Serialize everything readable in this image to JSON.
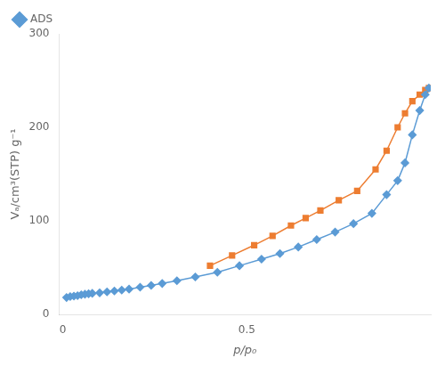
{
  "chart_data": {
    "type": "line",
    "xlabel": "p/p₀",
    "ylabel": "Vₐ/cm³(STP) g⁻¹",
    "series": [
      {
        "name": "ADS",
        "color": "#5b9bd5",
        "marker": "diamond",
        "x": [
          0.01,
          0.02,
          0.03,
          0.04,
          0.05,
          0.06,
          0.07,
          0.08,
          0.1,
          0.12,
          0.14,
          0.16,
          0.18,
          0.21,
          0.24,
          0.27,
          0.31,
          0.36,
          0.42,
          0.48,
          0.54,
          0.59,
          0.64,
          0.69,
          0.74,
          0.79,
          0.84,
          0.88,
          0.91,
          0.93,
          0.95,
          0.97,
          0.985,
          0.995
        ],
        "values": [
          18,
          19,
          19.5,
          20,
          21,
          21.5,
          22,
          22.5,
          23,
          24,
          25,
          26,
          27,
          29,
          31,
          33,
          36,
          40,
          45,
          52,
          59,
          65,
          72,
          80,
          88,
          97,
          108,
          128,
          143,
          162,
          192,
          218,
          235,
          242
        ]
      },
      {
        "color": "#ed7d31",
        "marker": "square",
        "x": [
          0.4,
          0.46,
          0.52,
          0.57,
          0.62,
          0.66,
          0.7,
          0.75,
          0.8,
          0.85,
          0.88,
          0.91,
          0.93,
          0.95,
          0.97,
          0.985,
          0.995
        ],
        "values": [
          52,
          63,
          74,
          84,
          95,
          103,
          111,
          122,
          132,
          155,
          175,
          200,
          215,
          228,
          235,
          240,
          242
        ]
      }
    ],
    "xlim": [
      -0.01,
      1.0
    ],
    "ylim": [
      0,
      300
    ],
    "xticks": [
      0,
      0.5
    ],
    "yticks": [
      0,
      100,
      200,
      300
    ],
    "grid": false,
    "legend": "upper left"
  }
}
